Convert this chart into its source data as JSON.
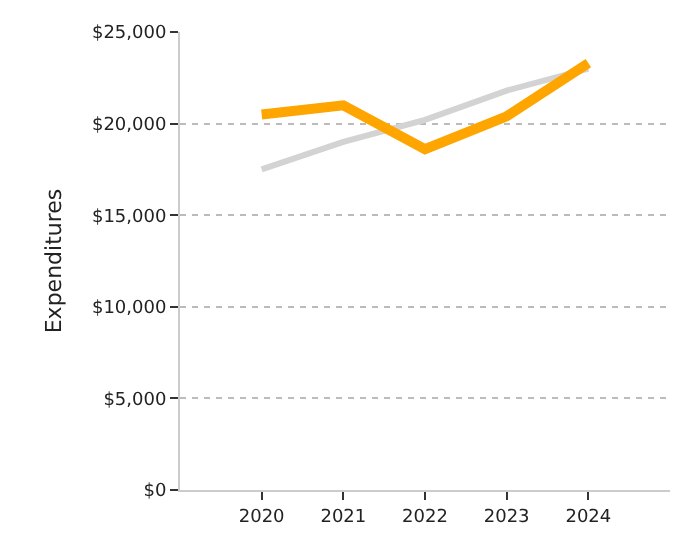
{
  "chart_data": {
    "type": "line",
    "ylabel": "Expenditures",
    "x": [
      2020,
      2021,
      2022,
      2023,
      2024
    ],
    "series": [
      {
        "color": "#d3d3d3",
        "values": [
          17500,
          19000,
          20200,
          21800,
          23000
        ]
      },
      {
        "color": "#ffa500",
        "values": [
          20500,
          21000,
          18600,
          20400,
          23300
        ]
      }
    ],
    "xlim": [
      2019,
      2025
    ],
    "xticks": [
      2020,
      2021,
      2022,
      2023,
      2024
    ],
    "ylim": [
      0,
      25000
    ],
    "yticks": [
      {
        "value": 0,
        "label": "$0"
      },
      {
        "value": 5000,
        "label": "$5,000"
      },
      {
        "value": 10000,
        "label": "$10,000"
      },
      {
        "value": 15000,
        "label": "$15,000"
      },
      {
        "value": 20000,
        "label": "$20,000"
      },
      {
        "value": 25000,
        "label": "$25,000"
      }
    ],
    "grid": "y"
  }
}
